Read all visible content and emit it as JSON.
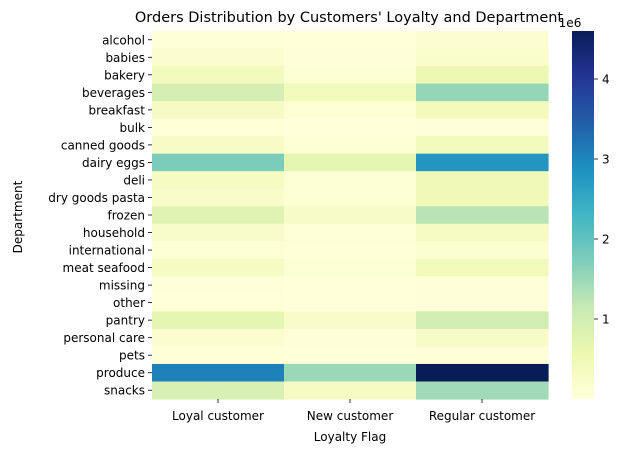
{
  "chart_data": {
    "type": "heatmap",
    "title": "Orders Distribution by Customers' Loyalty and Department",
    "xlabel": "Loyalty Flag",
    "ylabel": "Department",
    "x_categories": [
      "Loyal customer",
      "New customer",
      "Regular customer"
    ],
    "y_categories": [
      "alcohol",
      "babies",
      "bakery",
      "beverages",
      "breakfast",
      "bulk",
      "canned goods",
      "dairy eggs",
      "deli",
      "dry goods pasta",
      "frozen",
      "household",
      "international",
      "meat seafood",
      "missing",
      "other",
      "pantry",
      "personal care",
      "pets",
      "produce",
      "snacks"
    ],
    "values": [
      [
        0.04,
        0.01,
        0.1
      ],
      [
        0.14,
        0.02,
        0.19
      ],
      [
        0.39,
        0.08,
        0.56
      ],
      [
        0.95,
        0.45,
        1.55
      ],
      [
        0.29,
        0.07,
        0.42
      ],
      [
        0.01,
        0.0,
        0.02
      ],
      [
        0.27,
        0.09,
        0.45
      ],
      [
        1.75,
        0.7,
        2.8
      ],
      [
        0.33,
        0.09,
        0.47
      ],
      [
        0.25,
        0.09,
        0.47
      ],
      [
        0.75,
        0.28,
        1.25
      ],
      [
        0.22,
        0.05,
        0.32
      ],
      [
        0.08,
        0.03,
        0.12
      ],
      [
        0.3,
        0.09,
        0.45
      ],
      [
        0.02,
        0.0,
        0.04
      ],
      [
        0.01,
        0.0,
        0.02
      ],
      [
        0.7,
        0.21,
        1.0
      ],
      [
        0.14,
        0.04,
        0.26
      ],
      [
        0.03,
        0.01,
        0.05
      ],
      [
        3.05,
        1.5,
        4.6
      ],
      [
        0.9,
        0.33,
        1.45
      ]
    ],
    "colorbar": {
      "colormap": "YlGnBu",
      "vmin": 0.0,
      "vmax": 4.6,
      "ticks": [
        1,
        2,
        3,
        4
      ],
      "tick_labels": [
        "1",
        "2",
        "3",
        "4"
      ],
      "offset_label": "1e6"
    }
  }
}
